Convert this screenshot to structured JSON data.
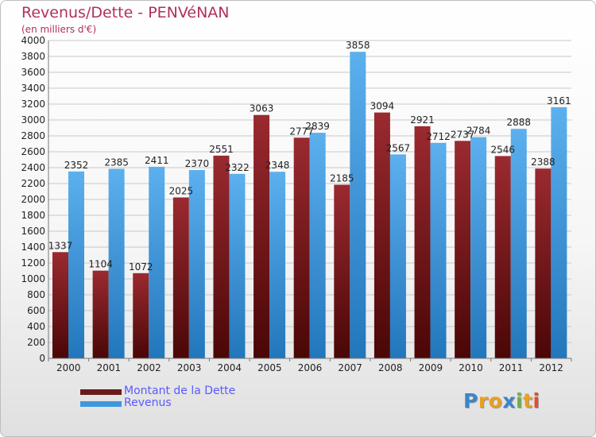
{
  "header": {
    "title": "Revenus/Dette - PENVéNAN",
    "subtitle": "(en milliers d'€)"
  },
  "legend": {
    "items": [
      {
        "label": "Montant de la Dette",
        "color": "#6b1a1a"
      },
      {
        "label": "Revenus",
        "color": "#3d97de"
      }
    ]
  },
  "logo": {
    "letters": [
      "P",
      "r",
      "o",
      "x",
      "i",
      "t",
      "i"
    ],
    "colors": [
      "#3a86c8",
      "#e8a020",
      "#e8a020",
      "#3a86c8",
      "#6ab04c",
      "#e8a020",
      "#e84c2c"
    ]
  },
  "colors": {
    "dette": "#6b1a1a",
    "revenus": "#3d97de",
    "title": "#b03060",
    "legend_text": "#5a5aff",
    "grid": "#c8c8c8"
  },
  "chart_data": {
    "type": "bar",
    "title": "Revenus/Dette - PENVéNAN",
    "ylabel": "(en milliers d'€)",
    "categories": [
      "2000",
      "2001",
      "2002",
      "2003",
      "2004",
      "2005",
      "2006",
      "2007",
      "2008",
      "2009",
      "2010",
      "2011",
      "2012"
    ],
    "series": [
      {
        "name": "Montant de la Dette",
        "values": [
          1337,
          1104,
          1072,
          2025,
          2551,
          3063,
          2777,
          2185,
          3094,
          2921,
          2737,
          2546,
          2388
        ],
        "labels": [
          "1337",
          "1104",
          "1072",
          "2025",
          "2551",
          "3063",
          "2777",
          "2185",
          "3094",
          "2921",
          "2737",
          "2546",
          "2388"
        ]
      },
      {
        "name": "Revenus",
        "values": [
          2352,
          2385,
          2411,
          2370,
          2322,
          2348,
          2839,
          3858,
          2567,
          2712,
          2784,
          2888,
          3161
        ],
        "labels": [
          "2352",
          "2385",
          "2411",
          "2370",
          "2322",
          "2348",
          "2839",
          "3858",
          "2567",
          "2712",
          "2784",
          "2888",
          "3161"
        ]
      }
    ],
    "ylim": [
      0,
      4000
    ],
    "yticks": [
      0,
      200,
      400,
      600,
      800,
      1000,
      1200,
      1400,
      1600,
      1800,
      2000,
      2200,
      2400,
      2600,
      2800,
      3000,
      3200,
      3400,
      3600,
      3800,
      4000
    ],
    "grid": true,
    "legend_position": "bottom-left"
  }
}
